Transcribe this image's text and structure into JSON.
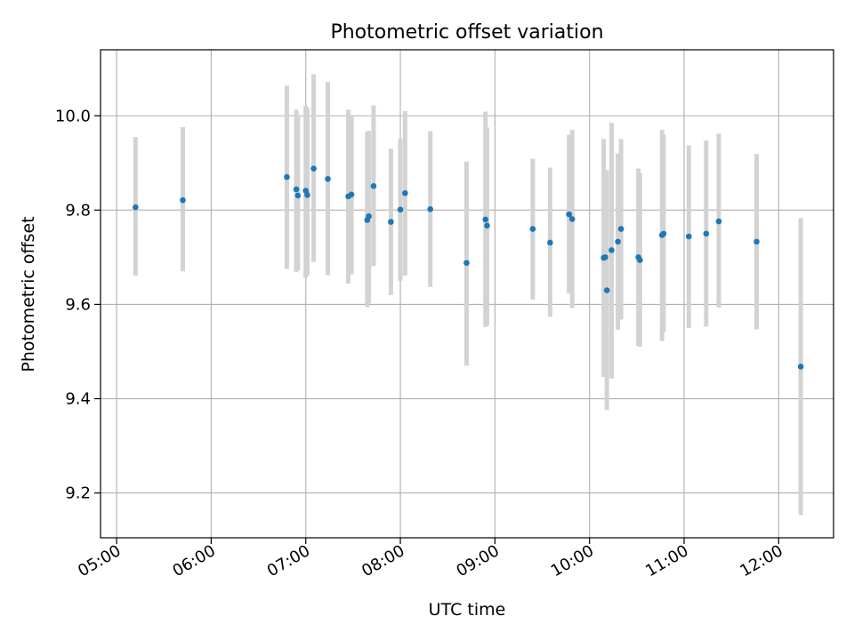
{
  "chart_data": {
    "type": "scatter",
    "title": "Photometric offset variation",
    "xlabel": "UTC time",
    "ylabel": "Photometric offset",
    "x_tick_labels": [
      "05:00",
      "06:00",
      "07:00",
      "08:00",
      "09:00",
      "10:00",
      "11:00",
      "12:00"
    ],
    "x_ticks_hours": [
      5,
      6,
      7,
      8,
      9,
      10,
      11,
      12
    ],
    "y_tick_labels": [
      "9.2",
      "9.4",
      "9.6",
      "9.8",
      "10.0"
    ],
    "y_ticks": [
      9.2,
      9.4,
      9.6,
      9.8,
      10.0
    ],
    "xlim_hours": [
      4.83,
      12.58
    ],
    "ylim": [
      9.105,
      10.14
    ],
    "grid": true,
    "marker_color": "#1f77b4",
    "errorbar_color": "#d3d3d3",
    "points": [
      {
        "time": "05:12",
        "y": 9.806,
        "lo": 9.661,
        "hi": 9.955
      },
      {
        "time": "05:42",
        "y": 9.821,
        "lo": 9.67,
        "hi": 9.976
      },
      {
        "time": "06:48",
        "y": 9.87,
        "lo": 9.675,
        "hi": 10.064
      },
      {
        "time": "06:54",
        "y": 9.844,
        "lo": 9.669,
        "hi": 10.013
      },
      {
        "time": "06:55",
        "y": 9.831,
        "lo": 9.672,
        "hi": 10.002
      },
      {
        "time": "07:00",
        "y": 9.841,
        "lo": 9.656,
        "hi": 10.021
      },
      {
        "time": "07:01",
        "y": 9.832,
        "lo": 9.662,
        "hi": 10.016
      },
      {
        "time": "07:05",
        "y": 9.888,
        "lo": 9.69,
        "hi": 10.088
      },
      {
        "time": "07:14",
        "y": 9.866,
        "lo": 9.662,
        "hi": 10.072
      },
      {
        "time": "07:27",
        "y": 9.829,
        "lo": 9.644,
        "hi": 10.013
      },
      {
        "time": "07:29",
        "y": 9.833,
        "lo": 9.664,
        "hi": 10.0
      },
      {
        "time": "07:39",
        "y": 9.779,
        "lo": 9.594,
        "hi": 9.966
      },
      {
        "time": "07:40",
        "y": 9.787,
        "lo": 9.602,
        "hi": 9.968
      },
      {
        "time": "07:43",
        "y": 9.851,
        "lo": 9.681,
        "hi": 10.022
      },
      {
        "time": "07:54",
        "y": 9.775,
        "lo": 9.62,
        "hi": 9.93
      },
      {
        "time": "08:00",
        "y": 9.801,
        "lo": 9.65,
        "hi": 9.951
      },
      {
        "time": "08:03",
        "y": 9.836,
        "lo": 9.661,
        "hi": 10.01
      },
      {
        "time": "08:19",
        "y": 9.802,
        "lo": 9.637,
        "hi": 9.967
      },
      {
        "time": "08:42",
        "y": 9.688,
        "lo": 9.47,
        "hi": 9.903
      },
      {
        "time": "08:54",
        "y": 9.78,
        "lo": 9.552,
        "hi": 10.009
      },
      {
        "time": "08:55",
        "y": 9.767,
        "lo": 9.555,
        "hi": 9.975
      },
      {
        "time": "09:24",
        "y": 9.76,
        "lo": 9.61,
        "hi": 9.909
      },
      {
        "time": "09:35",
        "y": 9.731,
        "lo": 9.574,
        "hi": 9.89
      },
      {
        "time": "09:47",
        "y": 9.791,
        "lo": 9.623,
        "hi": 9.96
      },
      {
        "time": "09:49",
        "y": 9.781,
        "lo": 9.592,
        "hi": 9.97
      },
      {
        "time": "10:09",
        "y": 9.699,
        "lo": 9.446,
        "hi": 9.951
      },
      {
        "time": "10:10",
        "y": 9.7,
        "lo": 9.53,
        "hi": 9.88
      },
      {
        "time": "10:11",
        "y": 9.63,
        "lo": 9.376,
        "hi": 9.885
      },
      {
        "time": "10:14",
        "y": 9.715,
        "lo": 9.443,
        "hi": 9.985
      },
      {
        "time": "10:18",
        "y": 9.733,
        "lo": 9.546,
        "hi": 9.92
      },
      {
        "time": "10:20",
        "y": 9.76,
        "lo": 9.568,
        "hi": 9.951
      },
      {
        "time": "10:31",
        "y": 9.7,
        "lo": 9.512,
        "hi": 9.888
      },
      {
        "time": "10:32",
        "y": 9.694,
        "lo": 9.51,
        "hi": 9.878
      },
      {
        "time": "10:46",
        "y": 9.747,
        "lo": 9.522,
        "hi": 9.97
      },
      {
        "time": "10:47",
        "y": 9.75,
        "lo": 9.541,
        "hi": 9.96
      },
      {
        "time": "11:03",
        "y": 9.744,
        "lo": 9.55,
        "hi": 9.937
      },
      {
        "time": "11:14",
        "y": 9.75,
        "lo": 9.553,
        "hi": 9.948
      },
      {
        "time": "11:22",
        "y": 9.776,
        "lo": 9.593,
        "hi": 9.962
      },
      {
        "time": "11:46",
        "y": 9.733,
        "lo": 9.547,
        "hi": 9.919
      },
      {
        "time": "12:14",
        "y": 9.468,
        "lo": 9.153,
        "hi": 9.783
      }
    ]
  }
}
